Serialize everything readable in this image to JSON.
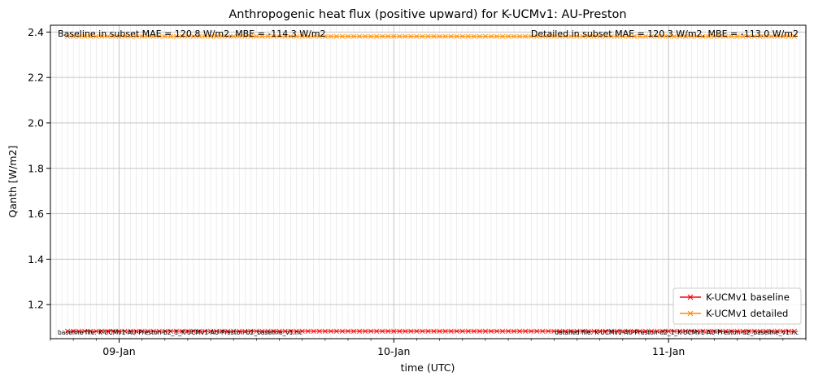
{
  "chart_data": {
    "type": "line",
    "title": "Anthropogenic heat flux (positive upward) for K-UCMv1: AU-Preston",
    "xlabel": "time (UTC)",
    "ylabel": "Qanth [W/m2]",
    "x_range": [
      "2004-01-08 18:00",
      "2004-01-11 12:00"
    ],
    "x_ticks": [
      "09-Jan",
      "10-Jan",
      "11-Jan"
    ],
    "ylim": [
      1.05,
      2.43
    ],
    "y_ticks": [
      "1.2",
      "1.4",
      "1.6",
      "1.8",
      "2.0",
      "2.2",
      "2.4"
    ],
    "grid": true,
    "legend_position": "lower-right",
    "series": [
      {
        "name": "K-UCMv1 baseline",
        "color": "#ff0000",
        "marker": "x",
        "x_start": "2004-01-08 19:30",
        "x_end": "2004-01-11 11:00",
        "interval_minutes": 30,
        "y": 1.083
      },
      {
        "name": "K-UCMv1 detailed",
        "color": "#ff8c00",
        "marker": "x",
        "x_start": "2004-01-08 19:30",
        "x_end": "2004-01-11 11:00",
        "interval_minutes": 30,
        "y": 2.381
      }
    ],
    "annotations": {
      "top_left": "Baseline in subset MAE = 120.8 W/m2, MBE = -114.3 W/m2",
      "top_right": "Detailed in subset MAE = 120.3 W/m2, MBE = -113.0 W/m2",
      "bottom_left": "baseline file: K-UCMv1-AU-Preston-b2_1_K-UCMv1-AU-Preston-b2_baseline_v1.nc",
      "bottom_right": "detailed file: K-UCMv1-AU-Preston-d2_1_K-UCMv1-AU-Preston-d2_baseline_v1.nc"
    }
  }
}
